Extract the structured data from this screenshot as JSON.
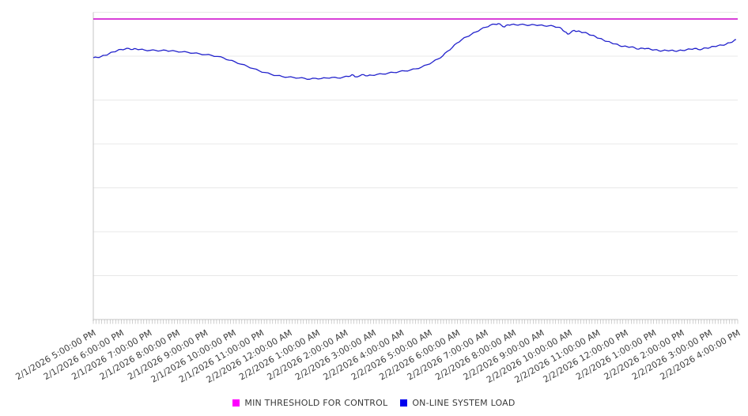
{
  "chart_data": {
    "type": "line",
    "title": "",
    "xlabel": "",
    "ylabel": "",
    "y_axis_labeled": false,
    "ylim": [
      0,
      100
    ],
    "grid": "horizontal",
    "gridline_count": 8,
    "minor_ticks_per_hour": 10,
    "legend_position": "bottom-center",
    "x_tick_labels": [
      "2/1/2026 5:00:00 PM",
      "2/1/2026 6:00:00 PM",
      "2/1/2026 7:00:00 PM",
      "2/1/2026 8:00:00 PM",
      "2/1/2026 9:00:00 PM",
      "2/1/2026 10:00:00 PM",
      "2/1/2026 11:00:00 PM",
      "2/2/2026 12:00:00 AM",
      "2/2/2026 1:00:00 AM",
      "2/2/2026 2:00:00 AM",
      "2/2/2026 3:00:00 AM",
      "2/2/2026 4:00:00 AM",
      "2/2/2026 5:00:00 AM",
      "2/2/2026 6:00:00 AM",
      "2/2/2026 7:00:00 AM",
      "2/2/2026 8:00:00 AM",
      "2/2/2026 9:00:00 AM",
      "2/2/2026 10:00:00 AM",
      "2/2/2026 11:00:00 AM",
      "2/2/2026 12:00:00 PM",
      "2/2/2026 1:00:00 PM",
      "2/2/2026 2:00:00 PM",
      "2/2/2026 3:00:00 PM",
      "2/2/2026 4:00:00 PM"
    ],
    "series": [
      {
        "name": "MIN THRESHOLD FOR CONTROL",
        "kind": "constant-threshold",
        "value": 97.8,
        "line_color": "#CC00CC",
        "swatch_color": "#FF00FF"
      },
      {
        "name": "ON-LINE SYSTEM LOAD",
        "kind": "sampled-line",
        "line_color": "#2222CC",
        "swatch_color": "#0000EE",
        "x_unit": "hours-from-first-tick",
        "y_unit": "percent-of-plot-height (axis unlabeled)",
        "points": [
          [
            0.0,
            85.2
          ],
          [
            0.14,
            85.3
          ],
          [
            0.28,
            85.6
          ],
          [
            0.42,
            86.0
          ],
          [
            0.56,
            86.5
          ],
          [
            0.71,
            87.1
          ],
          [
            0.85,
            87.5
          ],
          [
            0.99,
            87.9
          ],
          [
            1.13,
            88.0
          ],
          [
            1.27,
            88.2
          ],
          [
            1.41,
            87.9
          ],
          [
            1.52,
            88.1
          ],
          [
            1.67,
            87.9
          ],
          [
            1.83,
            87.7
          ],
          [
            2.03,
            87.6
          ],
          [
            2.23,
            87.6
          ],
          [
            2.4,
            87.5
          ],
          [
            2.6,
            87.6
          ],
          [
            2.74,
            87.4
          ],
          [
            2.94,
            87.3
          ],
          [
            3.16,
            87.1
          ],
          [
            3.36,
            87.0
          ],
          [
            3.58,
            86.7
          ],
          [
            3.78,
            86.5
          ],
          [
            4.01,
            86.2
          ],
          [
            4.21,
            86.0
          ],
          [
            4.43,
            85.6
          ],
          [
            4.66,
            85.1
          ],
          [
            4.85,
            84.4
          ],
          [
            5.05,
            83.9
          ],
          [
            5.28,
            83.1
          ],
          [
            5.5,
            82.4
          ],
          [
            5.7,
            81.7
          ],
          [
            5.93,
            80.9
          ],
          [
            6.12,
            80.4
          ],
          [
            6.35,
            79.8
          ],
          [
            6.55,
            79.4
          ],
          [
            6.74,
            79.1
          ],
          [
            6.94,
            78.9
          ],
          [
            7.14,
            78.8
          ],
          [
            7.34,
            78.6
          ],
          [
            7.54,
            78.5
          ],
          [
            7.73,
            78.2
          ],
          [
            7.93,
            78.5
          ],
          [
            8.13,
            78.4
          ],
          [
            8.32,
            78.6
          ],
          [
            8.52,
            78.8
          ],
          [
            8.72,
            78.6
          ],
          [
            8.92,
            78.9
          ],
          [
            9.11,
            79.1
          ],
          [
            9.23,
            79.7
          ],
          [
            9.34,
            79.0
          ],
          [
            9.51,
            79.3
          ],
          [
            9.65,
            79.7
          ],
          [
            9.79,
            79.3
          ],
          [
            9.93,
            79.5
          ],
          [
            10.13,
            79.8
          ],
          [
            10.33,
            79.9
          ],
          [
            10.53,
            80.2
          ],
          [
            10.72,
            80.4
          ],
          [
            10.92,
            80.7
          ],
          [
            11.12,
            80.9
          ],
          [
            11.32,
            81.2
          ],
          [
            11.51,
            81.6
          ],
          [
            11.71,
            82.1
          ],
          [
            11.91,
            82.9
          ],
          [
            12.11,
            83.8
          ],
          [
            12.3,
            84.8
          ],
          [
            12.47,
            85.8
          ],
          [
            12.64,
            87.3
          ],
          [
            12.81,
            88.5
          ],
          [
            12.98,
            90.0
          ],
          [
            13.15,
            91.1
          ],
          [
            13.32,
            92.0
          ],
          [
            13.49,
            92.8
          ],
          [
            13.66,
            93.6
          ],
          [
            13.83,
            94.5
          ],
          [
            14.0,
            95.1
          ],
          [
            14.17,
            95.8
          ],
          [
            14.34,
            96.1
          ],
          [
            14.45,
            96.3
          ],
          [
            14.56,
            95.8
          ],
          [
            14.68,
            95.2
          ],
          [
            14.79,
            95.9
          ],
          [
            14.93,
            96.0
          ],
          [
            15.07,
            95.9
          ],
          [
            15.24,
            96.0
          ],
          [
            15.41,
            95.9
          ],
          [
            15.58,
            95.8
          ],
          [
            15.75,
            95.9
          ],
          [
            15.92,
            95.8
          ],
          [
            16.09,
            95.6
          ],
          [
            16.26,
            95.6
          ],
          [
            16.42,
            95.5
          ],
          [
            16.59,
            95.1
          ],
          [
            16.71,
            94.7
          ],
          [
            16.82,
            93.7
          ],
          [
            16.93,
            92.9
          ],
          [
            17.04,
            93.4
          ],
          [
            17.16,
            94.1
          ],
          [
            17.27,
            93.8
          ],
          [
            17.38,
            93.7
          ],
          [
            17.5,
            93.4
          ],
          [
            17.64,
            93.1
          ],
          [
            17.78,
            92.5
          ],
          [
            17.92,
            92.1
          ],
          [
            18.06,
            91.5
          ],
          [
            18.2,
            91.0
          ],
          [
            18.34,
            90.5
          ],
          [
            18.48,
            90.1
          ],
          [
            18.63,
            89.7
          ],
          [
            18.77,
            89.2
          ],
          [
            18.91,
            88.9
          ],
          [
            19.05,
            88.8
          ],
          [
            19.19,
            88.7
          ],
          [
            19.33,
            88.4
          ],
          [
            19.47,
            88.0
          ],
          [
            19.61,
            88.3
          ],
          [
            19.75,
            88.2
          ],
          [
            19.9,
            87.9
          ],
          [
            20.04,
            87.8
          ],
          [
            20.18,
            87.5
          ],
          [
            20.32,
            87.5
          ],
          [
            20.46,
            87.6
          ],
          [
            20.6,
            87.6
          ],
          [
            20.74,
            87.4
          ],
          [
            20.88,
            87.5
          ],
          [
            21.02,
            87.6
          ],
          [
            21.17,
            87.8
          ],
          [
            21.31,
            88.0
          ],
          [
            21.45,
            88.2
          ],
          [
            21.59,
            87.9
          ],
          [
            21.73,
            88.0
          ],
          [
            21.87,
            88.4
          ],
          [
            22.01,
            88.5
          ],
          [
            22.15,
            88.9
          ],
          [
            22.29,
            89.1
          ],
          [
            22.44,
            89.3
          ],
          [
            22.58,
            89.6
          ],
          [
            22.72,
            90.1
          ],
          [
            22.86,
            90.7
          ],
          [
            22.94,
            91.1
          ]
        ]
      }
    ],
    "legend": {
      "items": [
        {
          "label": "MIN THRESHOLD FOR CONTROL",
          "color": "#FF00FF"
        },
        {
          "label": "ON-LINE SYSTEM LOAD",
          "color": "#0000EE"
        }
      ]
    }
  },
  "colors": {
    "gridline": "#e8e8e8",
    "axis": "#c4c4c4",
    "minor_tick": "#b0b0b0",
    "label_text": "#404040"
  }
}
